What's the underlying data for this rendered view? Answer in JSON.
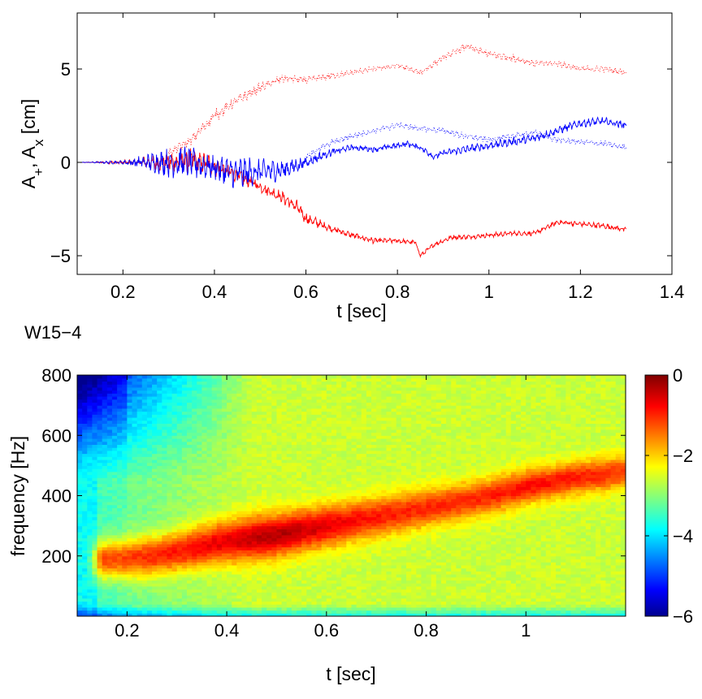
{
  "panel_label": "W15−4",
  "chart_data": [
    {
      "type": "line",
      "xlabel": "t [sec]",
      "ylabel_main": "A",
      "ylabel_sub1": "+",
      "ylabel_sep": ",  A",
      "ylabel_sub2": "x",
      "ylabel_unit": "  [cm]",
      "xlim": [
        0.1,
        1.4
      ],
      "ylim": [
        -6,
        8
      ],
      "xticks": [
        0.2,
        0.4,
        0.6,
        0.8,
        1.0,
        1.2,
        1.4
      ],
      "xtick_labels": [
        "0.2",
        "0.4",
        "0.6",
        "0.8",
        "1",
        "1.2",
        "1.4"
      ],
      "yticks": [
        -5,
        0,
        5
      ],
      "ytick_labels": [
        "−5",
        "0",
        "5"
      ],
      "grid": false,
      "series": [
        {
          "style": "solid",
          "color": "#ff0000",
          "x": [
            0.1,
            0.2,
            0.3,
            0.35,
            0.4,
            0.45,
            0.5,
            0.55,
            0.58,
            0.6,
            0.65,
            0.7,
            0.75,
            0.8,
            0.84,
            0.85,
            0.88,
            0.92,
            0.95,
            1.0,
            1.05,
            1.1,
            1.15,
            1.2,
            1.25,
            1.3
          ],
          "y": [
            0.0,
            0.0,
            0.0,
            0.1,
            -0.2,
            -0.7,
            -1.3,
            -1.9,
            -2.4,
            -3.0,
            -3.5,
            -3.9,
            -4.2,
            -4.2,
            -4.3,
            -5.0,
            -4.4,
            -4.0,
            -4.0,
            -3.9,
            -3.8,
            -3.8,
            -3.2,
            -3.3,
            -3.4,
            -3.6
          ],
          "noise": [
            0.0,
            0.1,
            0.5,
            0.6,
            0.5,
            0.35,
            0.3,
            0.3,
            0.35,
            0.3,
            0.18,
            0.15,
            0.15,
            0.12,
            0.12,
            0.1,
            0.12,
            0.12,
            0.12,
            0.12,
            0.12,
            0.12,
            0.12,
            0.12,
            0.15,
            0.15
          ]
        },
        {
          "style": "solid",
          "color": "#0000ff",
          "x": [
            0.1,
            0.2,
            0.3,
            0.35,
            0.4,
            0.45,
            0.5,
            0.55,
            0.6,
            0.65,
            0.7,
            0.75,
            0.8,
            0.82,
            0.85,
            0.88,
            0.9,
            0.95,
            1.0,
            1.05,
            1.1,
            1.15,
            1.2,
            1.25,
            1.3
          ],
          "y": [
            0.0,
            0.0,
            0.0,
            0.0,
            -0.3,
            -0.6,
            -0.5,
            -0.4,
            0.0,
            0.5,
            0.8,
            0.7,
            0.9,
            1.0,
            0.8,
            0.3,
            0.5,
            0.7,
            0.9,
            1.1,
            1.3,
            1.7,
            2.1,
            2.2,
            2.0
          ],
          "noise": [
            0.0,
            0.1,
            0.7,
            0.8,
            0.6,
            0.9,
            0.6,
            0.5,
            0.3,
            0.2,
            0.15,
            0.15,
            0.15,
            0.15,
            0.15,
            0.15,
            0.15,
            0.2,
            0.2,
            0.2,
            0.2,
            0.2,
            0.2,
            0.2,
            0.2
          ]
        },
        {
          "style": "dotted",
          "color": "#ff0000",
          "x": [
            0.3,
            0.35,
            0.4,
            0.45,
            0.5,
            0.55,
            0.6,
            0.7,
            0.8,
            0.85,
            0.9,
            0.95,
            1.0,
            1.05,
            1.1,
            1.15,
            1.2,
            1.25,
            1.3
          ],
          "y": [
            0.5,
            1.2,
            2.5,
            3.3,
            4.0,
            4.5,
            4.4,
            4.8,
            5.2,
            4.8,
            5.6,
            6.2,
            5.8,
            5.6,
            5.3,
            5.3,
            5.0,
            5.0,
            4.8
          ],
          "noise": [
            0.2,
            0.25,
            0.3,
            0.3,
            0.25,
            0.2,
            0.2,
            0.15,
            0.15,
            0.15,
            0.15,
            0.2,
            0.2,
            0.2,
            0.15,
            0.15,
            0.15,
            0.15,
            0.12
          ]
        },
        {
          "style": "dotted",
          "color": "#0000ff",
          "x": [
            0.6,
            0.65,
            0.7,
            0.75,
            0.8,
            0.85,
            0.9,
            0.95,
            1.0,
            1.05,
            1.1,
            1.15,
            1.2,
            1.25,
            1.3
          ],
          "y": [
            0.3,
            1.0,
            1.4,
            1.7,
            2.0,
            1.8,
            1.7,
            1.4,
            1.2,
            1.4,
            1.6,
            1.2,
            1.1,
            1.0,
            0.8
          ],
          "noise": [
            0.15,
            0.15,
            0.15,
            0.15,
            0.15,
            0.15,
            0.15,
            0.15,
            0.15,
            0.15,
            0.15,
            0.15,
            0.15,
            0.15,
            0.15
          ]
        }
      ]
    },
    {
      "type": "heatmap",
      "xlabel": "t [sec]",
      "ylabel": "frequency [Hz]",
      "xlim": [
        0.1,
        1.2
      ],
      "ylim": [
        0,
        800
      ],
      "xticks": [
        0.2,
        0.4,
        0.6,
        0.8,
        1.0
      ],
      "xtick_labels": [
        "0.2",
        "0.4",
        "0.6",
        "0.8",
        "1"
      ],
      "yticks": [
        200,
        400,
        600,
        800
      ],
      "ytick_labels": [
        "200",
        "400",
        "600",
        "800"
      ],
      "colorbar": {
        "range": [
          -6,
          0
        ],
        "ticks": [
          -6,
          -4,
          -2,
          0
        ],
        "tick_labels": [
          "−6",
          "−4",
          "−2",
          "0"
        ],
        "colormap": "jet"
      },
      "ridge": {
        "t": [
          0.18,
          0.25,
          0.3,
          0.4,
          0.5,
          0.6,
          0.7,
          0.8,
          0.9,
          1.0,
          1.1,
          1.2
        ],
        "freq": [
          190,
          200,
          215,
          250,
          270,
          300,
          330,
          360,
          390,
          430,
          460,
          480
        ],
        "peak_level": [
          -1.2,
          -1.0,
          -0.9,
          -0.6,
          -0.3,
          -0.6,
          -0.9,
          -1.0,
          -1.0,
          -0.8,
          -0.9,
          -1.1
        ]
      },
      "background_level": -2.6,
      "lowfreq_early_level": -5.0
    }
  ]
}
